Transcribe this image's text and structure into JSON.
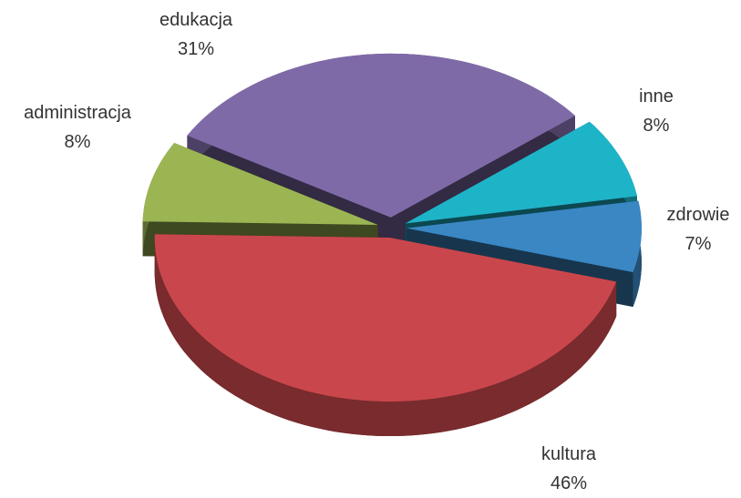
{
  "chart_data": {
    "type": "pie",
    "categories": [
      "edukacja",
      "inne",
      "zdrowie",
      "kultura",
      "administracja"
    ],
    "values": [
      31,
      8,
      7,
      46,
      8
    ],
    "value_labels": [
      "31%",
      "8%",
      "7%",
      "46%",
      "8%"
    ],
    "colors": [
      "#7f6aa8",
      "#1eb4c8",
      "#3a87c4",
      "#c9474c",
      "#9bb553"
    ]
  }
}
